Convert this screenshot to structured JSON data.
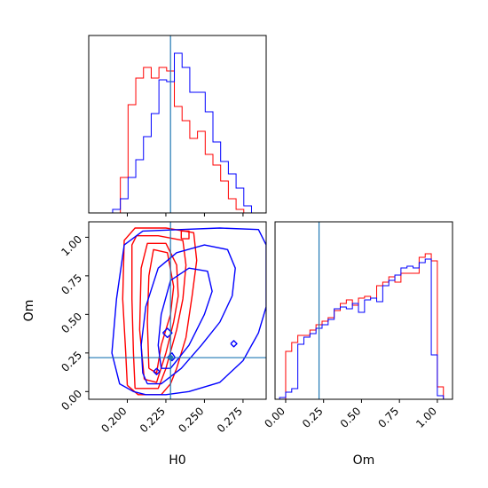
{
  "colors": {
    "red": "#ff0000",
    "blue": "#0000ff",
    "truth": "#1f77b4",
    "axis": "#000000"
  },
  "chart_data": {
    "type": "corner",
    "parameters": [
      "H0",
      "Om"
    ],
    "truth": {
      "H0": 0.228,
      "Om": 0.22
    },
    "panels": {
      "hist_H0": {
        "type": "histogram",
        "xlim": [
          0.175,
          0.29
        ],
        "ylim": [
          0,
          1.0
        ],
        "xticks": [
          0.2,
          0.225,
          0.25,
          0.275
        ],
        "edges": [
          0.1855,
          0.1905,
          0.1955,
          0.2005,
          0.2055,
          0.2105,
          0.2155,
          0.2205,
          0.2255,
          0.2305,
          0.2355,
          0.2405,
          0.2455,
          0.2505,
          0.2555,
          0.2605,
          0.2655,
          0.2705,
          0.2755,
          0.2805,
          0.2855
        ],
        "series": [
          {
            "name": "red",
            "color": "#ff0000",
            "counts": [
              0,
              0,
              0.2,
              0.61,
              0.76,
              0.82,
              0.76,
              0.82,
              0.8,
              0.6,
              0.52,
              0.42,
              0.46,
              0.33,
              0.27,
              0.18,
              0.08,
              0.02,
              0,
              0
            ]
          },
          {
            "name": "blue",
            "color": "#0000ff",
            "counts": [
              0,
              0.02,
              0.08,
              0.2,
              0.3,
              0.43,
              0.56,
              0.75,
              0.74,
              0.9,
              0.82,
              0.68,
              0.68,
              0.57,
              0.4,
              0.29,
              0.22,
              0.14,
              0.04,
              0
            ]
          }
        ]
      },
      "hist_Om": {
        "type": "histogram",
        "xlim": [
          -0.07,
          1.1
        ],
        "ylim": [
          0,
          1.0
        ],
        "xticks": [
          0.0,
          0.25,
          0.5,
          0.75,
          1.0
        ],
        "xticklabels": [
          "0.00",
          "0.25",
          "0.50",
          "0.75",
          "1.00"
        ],
        "xlabel": "Om",
        "edges": [
          -0.04,
          0.0,
          0.04,
          0.08,
          0.12,
          0.16,
          0.2,
          0.24,
          0.28,
          0.32,
          0.36,
          0.4,
          0.44,
          0.48,
          0.52,
          0.56,
          0.6,
          0.64,
          0.68,
          0.72,
          0.76,
          0.8,
          0.84,
          0.88,
          0.92,
          0.96,
          1.0,
          1.04
        ],
        "series": [
          {
            "name": "red",
            "color": "#ff0000",
            "counts": [
              0,
              0.27,
              0.32,
              0.36,
              0.36,
              0.39,
              0.42,
              0.44,
              0.46,
              0.5,
              0.54,
              0.56,
              0.53,
              0.57,
              0.58,
              0.57,
              0.64,
              0.66,
              0.69,
              0.66,
              0.71,
              0.71,
              0.71,
              0.8,
              0.82,
              0.78,
              0.07
            ]
          },
          {
            "name": "blue",
            "color": "#0000ff",
            "counts": [
              0.01,
              0.04,
              0.06,
              0.31,
              0.35,
              0.37,
              0.4,
              0.42,
              0.45,
              0.51,
              0.52,
              0.51,
              0.54,
              0.49,
              0.56,
              0.57,
              0.55,
              0.64,
              0.67,
              0.7,
              0.74,
              0.75,
              0.74,
              0.77,
              0.79,
              0.25,
              0.02
            ]
          }
        ]
      },
      "contour_H0_Om": {
        "type": "contour",
        "xlim": [
          0.175,
          0.29
        ],
        "ylim": [
          -0.05,
          1.1
        ],
        "xticks": [
          0.2,
          0.225,
          0.25,
          0.275
        ],
        "xticklabels": [
          "0.200",
          "0.225",
          "0.250",
          "0.275"
        ],
        "yticks": [
          0.0,
          0.25,
          0.5,
          0.75,
          1.0
        ],
        "yticklabels": [
          "0.00",
          "0.25",
          "0.50",
          "0.75",
          "1.00"
        ],
        "xlabel": "H0",
        "ylabel": "Om",
        "series": [
          {
            "name": "red",
            "color": "#ff0000",
            "contours": [
              [
                [
                  0.2,
                  0.04
                ],
                [
                  0.207,
                  -0.02
                ],
                [
                  0.222,
                  -0.02
                ],
                [
                  0.228,
                  0.05
                ],
                [
                  0.232,
                  0.15
                ],
                [
                  0.238,
                  0.35
                ],
                [
                  0.242,
                  0.62
                ],
                [
                  0.245,
                  0.85
                ],
                [
                  0.243,
                  1.03
                ],
                [
                  0.225,
                  1.06
                ],
                [
                  0.205,
                  1.06
                ],
                [
                  0.198,
                  0.98
                ],
                [
                  0.197,
                  0.6
                ],
                [
                  0.199,
                  0.25
                ],
                [
                  0.2,
                  0.04
                ]
              ],
              [
                [
                  0.205,
                  0.02
                ],
                [
                  0.22,
                  0.02
                ],
                [
                  0.225,
                  0.15
                ],
                [
                  0.232,
                  0.4
                ],
                [
                  0.236,
                  0.6
                ],
                [
                  0.238,
                  0.82
                ],
                [
                  0.236,
                  0.98
                ],
                [
                  0.22,
                  1.01
                ],
                [
                  0.206,
                  1.01
                ],
                [
                  0.203,
                  0.95
                ],
                [
                  0.203,
                  0.6
                ],
                [
                  0.204,
                  0.25
                ],
                [
                  0.205,
                  0.02
                ]
              ],
              [
                [
                  0.211,
                  0.08
                ],
                [
                  0.219,
                  0.06
                ],
                [
                  0.225,
                  0.25
                ],
                [
                  0.23,
                  0.45
                ],
                [
                  0.233,
                  0.62
                ],
                [
                  0.232,
                  0.82
                ],
                [
                  0.225,
                  0.96
                ],
                [
                  0.213,
                  0.96
                ],
                [
                  0.209,
                  0.8
                ],
                [
                  0.208,
                  0.4
                ],
                [
                  0.211,
                  0.08
                ]
              ],
              [
                [
                  0.214,
                  0.15
                ],
                [
                  0.219,
                  0.12
                ],
                [
                  0.222,
                  0.3
                ],
                [
                  0.228,
                  0.5
                ],
                [
                  0.23,
                  0.68
                ],
                [
                  0.226,
                  0.9
                ],
                [
                  0.217,
                  0.92
                ],
                [
                  0.214,
                  0.75
                ],
                [
                  0.213,
                  0.45
                ],
                [
                  0.214,
                  0.15
                ]
              ],
              [
                [
                  0.235,
                  0.99
                ],
                [
                  0.24,
                  0.99
                ],
                [
                  0.24,
                  1.04
                ],
                [
                  0.235,
                  1.04
                ],
                [
                  0.235,
                  0.99
                ]
              ]
            ]
          },
          {
            "name": "blue",
            "color": "#0000ff",
            "contours": [
              [
                [
                  0.204,
                  0.0
                ],
                [
                  0.212,
                  -0.02
                ],
                [
                  0.225,
                  -0.02
                ],
                [
                  0.24,
                  0.0
                ],
                [
                  0.26,
                  0.06
                ],
                [
                  0.275,
                  0.2
                ],
                [
                  0.285,
                  0.38
                ],
                [
                  0.29,
                  0.55
                ],
                [
                  0.29,
                  0.95
                ],
                [
                  0.285,
                  1.05
                ],
                [
                  0.26,
                  1.06
                ],
                [
                  0.235,
                  1.05
                ],
                [
                  0.21,
                  1.04
                ],
                [
                  0.198,
                  0.95
                ],
                [
                  0.193,
                  0.6
                ],
                [
                  0.19,
                  0.25
                ],
                [
                  0.195,
                  0.05
                ],
                [
                  0.204,
                  0.0
                ]
              ],
              [
                [
                  0.213,
                  0.05
                ],
                [
                  0.222,
                  0.05
                ],
                [
                  0.235,
                  0.15
                ],
                [
                  0.248,
                  0.3
                ],
                [
                  0.26,
                  0.45
                ],
                [
                  0.268,
                  0.62
                ],
                [
                  0.27,
                  0.8
                ],
                [
                  0.265,
                  0.92
                ],
                [
                  0.25,
                  0.95
                ],
                [
                  0.232,
                  0.9
                ],
                [
                  0.22,
                  0.8
                ],
                [
                  0.212,
                  0.55
                ],
                [
                  0.209,
                  0.3
                ],
                [
                  0.21,
                  0.12
                ],
                [
                  0.213,
                  0.05
                ]
              ],
              [
                [
                  0.222,
                  0.15
                ],
                [
                  0.228,
                  0.15
                ],
                [
                  0.24,
                  0.3
                ],
                [
                  0.25,
                  0.5
                ],
                [
                  0.255,
                  0.65
                ],
                [
                  0.252,
                  0.78
                ],
                [
                  0.24,
                  0.8
                ],
                [
                  0.228,
                  0.72
                ],
                [
                  0.222,
                  0.5
                ],
                [
                  0.22,
                  0.3
                ],
                [
                  0.222,
                  0.15
                ]
              ],
              [
                [
                  0.226,
                  0.22
                ],
                [
                  0.229,
                  0.2
                ],
                [
                  0.231,
                  0.22
                ],
                [
                  0.229,
                  0.25
                ],
                [
                  0.226,
                  0.22
                ]
              ],
              [
                [
                  0.223,
                  0.38
                ],
                [
                  0.226,
                  0.35
                ],
                [
                  0.229,
                  0.38
                ],
                [
                  0.226,
                  0.41
                ],
                [
                  0.223,
                  0.38
                ]
              ],
              [
                [
                  0.267,
                  0.31
                ],
                [
                  0.269,
                  0.29
                ],
                [
                  0.271,
                  0.31
                ],
                [
                  0.269,
                  0.33
                ],
                [
                  0.267,
                  0.31
                ]
              ],
              [
                [
                  0.217,
                  0.13
                ],
                [
                  0.219,
                  0.11
                ],
                [
                  0.221,
                  0.13
                ],
                [
                  0.219,
                  0.15
                ],
                [
                  0.217,
                  0.13
                ]
              ]
            ]
          }
        ]
      }
    }
  }
}
